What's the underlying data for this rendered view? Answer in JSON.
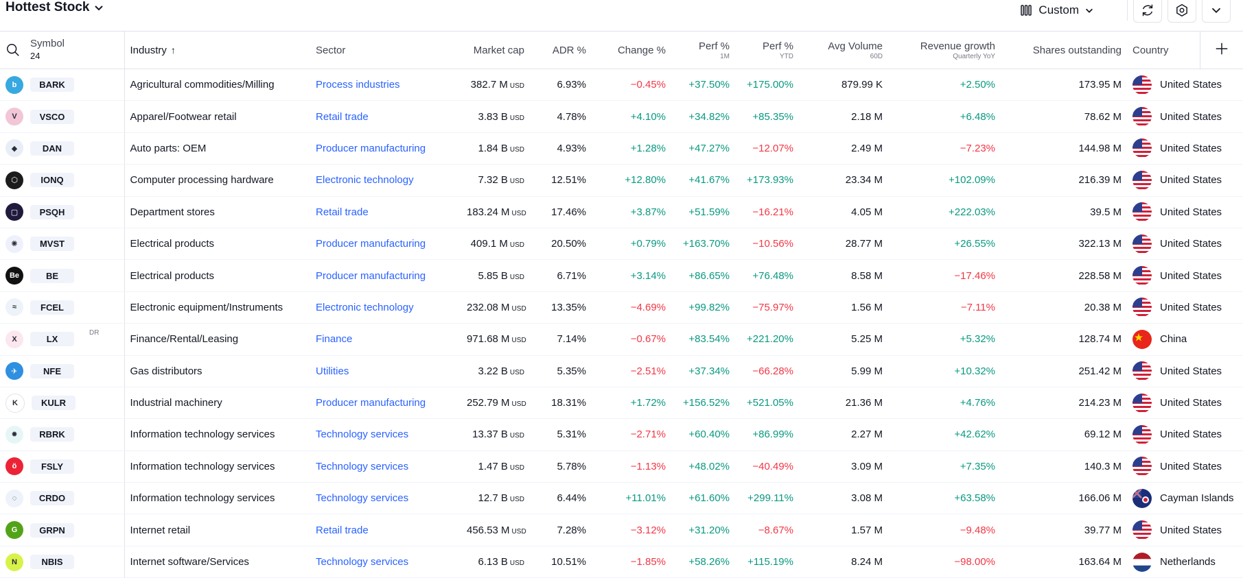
{
  "header": {
    "title": "Hottest Stock",
    "custom_label": "Custom"
  },
  "columns": {
    "symbol": "Symbol",
    "symbol_count": "24",
    "industry": "Industry",
    "sector": "Sector",
    "market_cap": "Market cap",
    "adr": "ADR %",
    "change": "Change %",
    "perf_1m": "Perf %",
    "perf_1m_sub": "1M",
    "perf_ytd": "Perf %",
    "perf_ytd_sub": "YTD",
    "avg_volume": "Avg Volume",
    "avg_volume_sub": "60D",
    "revenue_growth": "Revenue growth",
    "revenue_growth_sub": "Quarterly YoY",
    "shares": "Shares outstanding",
    "country": "Country"
  },
  "colors": {
    "positive": "#089981",
    "negative": "#f23645",
    "link": "#2962ff"
  },
  "rows": [
    {
      "symbol": "BARK",
      "logo_color": "#38a8e0",
      "logo_text": "b",
      "dr": "",
      "industry": "Agricultural commodities/Milling",
      "sector": "Process industries",
      "mcap": "382.7 M",
      "adr": "6.93%",
      "change": "−0.45%",
      "perf1m": "+37.50%",
      "perfytd": "+175.00%",
      "avgvol": "879.99 K",
      "rev": "+2.50%",
      "shares": "173.95 M",
      "country": "United States",
      "flag": "us"
    },
    {
      "symbol": "VSCO",
      "logo_color": "#f2c6d6",
      "logo_text": "V",
      "dr": "",
      "industry": "Apparel/Footwear retail",
      "sector": "Retail trade",
      "mcap": "3.83 B",
      "adr": "4.78%",
      "change": "+4.10%",
      "perf1m": "+34.82%",
      "perfytd": "+85.35%",
      "avgvol": "2.18 M",
      "rev": "+6.48%",
      "shares": "78.62 M",
      "country": "United States",
      "flag": "us"
    },
    {
      "symbol": "DAN",
      "logo_color": "#e9edf5",
      "logo_text": "◆",
      "dr": "",
      "industry": "Auto parts: OEM",
      "sector": "Producer manufacturing",
      "mcap": "1.84 B",
      "adr": "4.93%",
      "change": "+1.28%",
      "perf1m": "+47.27%",
      "perfytd": "−12.07%",
      "avgvol": "2.49 M",
      "rev": "−7.23%",
      "shares": "144.98 M",
      "country": "United States",
      "flag": "us"
    },
    {
      "symbol": "IONQ",
      "logo_color": "#1c1c1c",
      "logo_text": "⬡",
      "dr": "",
      "industry": "Computer processing hardware",
      "sector": "Electronic technology",
      "mcap": "7.32 B",
      "adr": "12.51%",
      "change": "+12.80%",
      "perf1m": "+41.67%",
      "perfytd": "+173.93%",
      "avgvol": "23.34 M",
      "rev": "+102.09%",
      "shares": "216.39 M",
      "country": "United States",
      "flag": "us"
    },
    {
      "symbol": "PSQH",
      "logo_color": "#201a3d",
      "logo_text": "▢",
      "dr": "",
      "industry": "Department stores",
      "sector": "Retail trade",
      "mcap": "183.24 M",
      "adr": "17.46%",
      "change": "+3.87%",
      "perf1m": "+51.59%",
      "perfytd": "−16.21%",
      "avgvol": "4.05 M",
      "rev": "+222.03%",
      "shares": "39.5 M",
      "country": "United States",
      "flag": "us"
    },
    {
      "symbol": "MVST",
      "logo_color": "#eef1fb",
      "logo_text": "✺",
      "dr": "",
      "industry": "Electrical products",
      "sector": "Producer manufacturing",
      "mcap": "409.1 M",
      "adr": "20.50%",
      "change": "+0.79%",
      "perf1m": "+163.70%",
      "perfytd": "−10.56%",
      "avgvol": "28.77 M",
      "rev": "+26.55%",
      "shares": "322.13 M",
      "country": "United States",
      "flag": "us"
    },
    {
      "symbol": "BE",
      "logo_color": "#111111",
      "logo_text": "Be",
      "dr": "",
      "industry": "Electrical products",
      "sector": "Producer manufacturing",
      "mcap": "5.85 B",
      "adr": "6.71%",
      "change": "+3.14%",
      "perf1m": "+86.65%",
      "perfytd": "+76.48%",
      "avgvol": "8.58 M",
      "rev": "−17.46%",
      "shares": "228.58 M",
      "country": "United States",
      "flag": "us"
    },
    {
      "symbol": "FCEL",
      "logo_color": "#eef3fa",
      "logo_text": "≈",
      "dr": "",
      "industry": "Electronic equipment/Instruments",
      "sector": "Electronic technology",
      "mcap": "232.08 M",
      "adr": "13.35%",
      "change": "−4.69%",
      "perf1m": "+99.82%",
      "perfytd": "−75.97%",
      "avgvol": "1.56 M",
      "rev": "−7.11%",
      "shares": "20.38 M",
      "country": "United States",
      "flag": "us"
    },
    {
      "symbol": "LX",
      "logo_color": "#fde7ee",
      "logo_text": "X",
      "dr": "DR",
      "industry": "Finance/Rental/Leasing",
      "sector": "Finance",
      "mcap": "971.68 M",
      "adr": "7.14%",
      "change": "−0.67%",
      "perf1m": "+83.54%",
      "perfytd": "+221.20%",
      "avgvol": "5.25 M",
      "rev": "+5.32%",
      "shares": "128.74 M",
      "country": "China",
      "flag": "cn"
    },
    {
      "symbol": "NFE",
      "logo_color": "#2f8fe0",
      "logo_text": "✈",
      "dr": "",
      "industry": "Gas distributors",
      "sector": "Utilities",
      "mcap": "3.22 B",
      "adr": "5.35%",
      "change": "−2.51%",
      "perf1m": "+37.34%",
      "perfytd": "−66.28%",
      "avgvol": "5.99 M",
      "rev": "+10.32%",
      "shares": "251.42 M",
      "country": "United States",
      "flag": "us"
    },
    {
      "symbol": "KULR",
      "logo_color": "#ffffff",
      "logo_text": "K",
      "dr": "",
      "industry": "Industrial machinery",
      "sector": "Producer manufacturing",
      "mcap": "252.79 M",
      "adr": "18.31%",
      "change": "+1.72%",
      "perf1m": "+156.52%",
      "perfytd": "+521.05%",
      "avgvol": "21.36 M",
      "rev": "+4.76%",
      "shares": "214.23 M",
      "country": "United States",
      "flag": "us"
    },
    {
      "symbol": "RBRK",
      "logo_color": "#e6f6f7",
      "logo_text": "✹",
      "dr": "",
      "industry": "Information technology services",
      "sector": "Technology services",
      "mcap": "13.37 B",
      "adr": "5.31%",
      "change": "−2.71%",
      "perf1m": "+60.40%",
      "perfytd": "+86.99%",
      "avgvol": "2.27 M",
      "rev": "+42.62%",
      "shares": "69.12 M",
      "country": "United States",
      "flag": "us"
    },
    {
      "symbol": "FSLY",
      "logo_color": "#ec2336",
      "logo_text": "ö",
      "dr": "",
      "industry": "Information technology services",
      "sector": "Technology services",
      "mcap": "1.47 B",
      "adr": "5.78%",
      "change": "−1.13%",
      "perf1m": "+48.02%",
      "perfytd": "−40.49%",
      "avgvol": "3.09 M",
      "rev": "+7.35%",
      "shares": "140.3 M",
      "country": "United States",
      "flag": "us"
    },
    {
      "symbol": "CRDO",
      "logo_color": "#eef2fb",
      "logo_text": "◌",
      "dr": "",
      "industry": "Information technology services",
      "sector": "Technology services",
      "mcap": "12.7 B",
      "adr": "6.44%",
      "change": "+11.01%",
      "perf1m": "+61.60%",
      "perfytd": "+299.11%",
      "avgvol": "3.08 M",
      "rev": "+63.58%",
      "shares": "166.06 M",
      "country": "Cayman Islands",
      "flag": "ky"
    },
    {
      "symbol": "GRPN",
      "logo_color": "#53a318",
      "logo_text": "G",
      "dr": "",
      "industry": "Internet retail",
      "sector": "Retail trade",
      "mcap": "456.53 M",
      "adr": "7.28%",
      "change": "−3.12%",
      "perf1m": "+31.20%",
      "perfytd": "−8.67%",
      "avgvol": "1.57 M",
      "rev": "−9.48%",
      "shares": "39.77 M",
      "country": "United States",
      "flag": "us"
    },
    {
      "symbol": "NBIS",
      "logo_color": "#d9f24a",
      "logo_text": "N",
      "dr": "",
      "industry": "Internet software/Services",
      "sector": "Technology services",
      "mcap": "6.13 B",
      "adr": "10.51%",
      "change": "−1.85%",
      "perf1m": "+58.26%",
      "perfytd": "+115.19%",
      "avgvol": "8.24 M",
      "rev": "−98.00%",
      "shares": "163.64 M",
      "country": "Netherlands",
      "flag": "nl"
    }
  ],
  "currency_unit": "USD"
}
